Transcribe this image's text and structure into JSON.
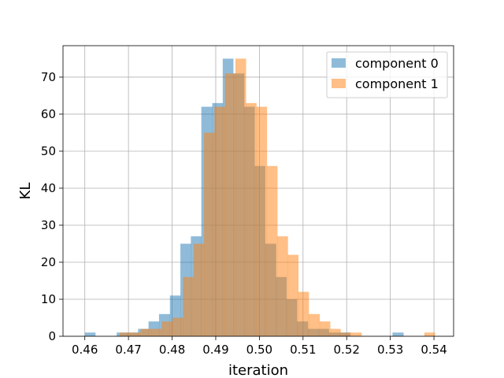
{
  "chart_data": {
    "type": "histogram",
    "title": "",
    "xlabel": "iteration",
    "ylabel": "KL",
    "xlim": [
      0.455,
      0.5445
    ],
    "ylim": [
      0,
      78.5
    ],
    "x_ticks": [
      "0.46",
      "0.47",
      "0.48",
      "0.49",
      "0.50",
      "0.51",
      "0.52",
      "0.53",
      "0.54"
    ],
    "y_ticks": [
      "0",
      "10",
      "20",
      "30",
      "40",
      "50",
      "60",
      "70"
    ],
    "grid": true,
    "legend_position": "top-right",
    "series": [
      {
        "name": "component 0",
        "color": "#1f77b4",
        "opacity": 0.5,
        "bin_edges": [
          0.46,
          0.4624,
          0.4649,
          0.4673,
          0.4697,
          0.4722,
          0.4746,
          0.477,
          0.4795,
          0.4819,
          0.4843,
          0.4867,
          0.4892,
          0.4916,
          0.494,
          0.4965,
          0.4989,
          0.5013,
          0.5038,
          0.5062,
          0.5086,
          0.5111,
          0.5135,
          0.5159,
          0.5184,
          0.5208,
          0.5232,
          0.5257,
          0.5281,
          0.5305,
          0.533
        ],
        "counts": [
          1,
          0,
          0,
          1,
          1,
          2,
          4,
          6,
          11,
          25,
          27,
          62,
          63,
          75,
          71,
          62,
          46,
          25,
          16,
          10,
          4,
          2,
          2,
          1,
          1,
          0,
          0,
          0,
          0,
          1
        ]
      },
      {
        "name": "component 1",
        "color": "#ff7f0e",
        "opacity": 0.5,
        "bin_edges": [
          0.468,
          0.4704,
          0.4728,
          0.4752,
          0.4776,
          0.4801,
          0.4825,
          0.4849,
          0.4873,
          0.4897,
          0.4921,
          0.4945,
          0.4969,
          0.4993,
          0.5017,
          0.5041,
          0.5065,
          0.5089,
          0.5113,
          0.5138,
          0.5162,
          0.5186,
          0.521,
          0.5234,
          0.5258,
          0.5282,
          0.5306,
          0.533,
          0.5354,
          0.5378,
          0.5402
        ],
        "counts": [
          1,
          1,
          2,
          2,
          4,
          5,
          16,
          25,
          55,
          62,
          71,
          75,
          63,
          62,
          46,
          27,
          22,
          12,
          6,
          4,
          2,
          1,
          1,
          0,
          0,
          0,
          0,
          0,
          0,
          1
        ]
      }
    ]
  }
}
